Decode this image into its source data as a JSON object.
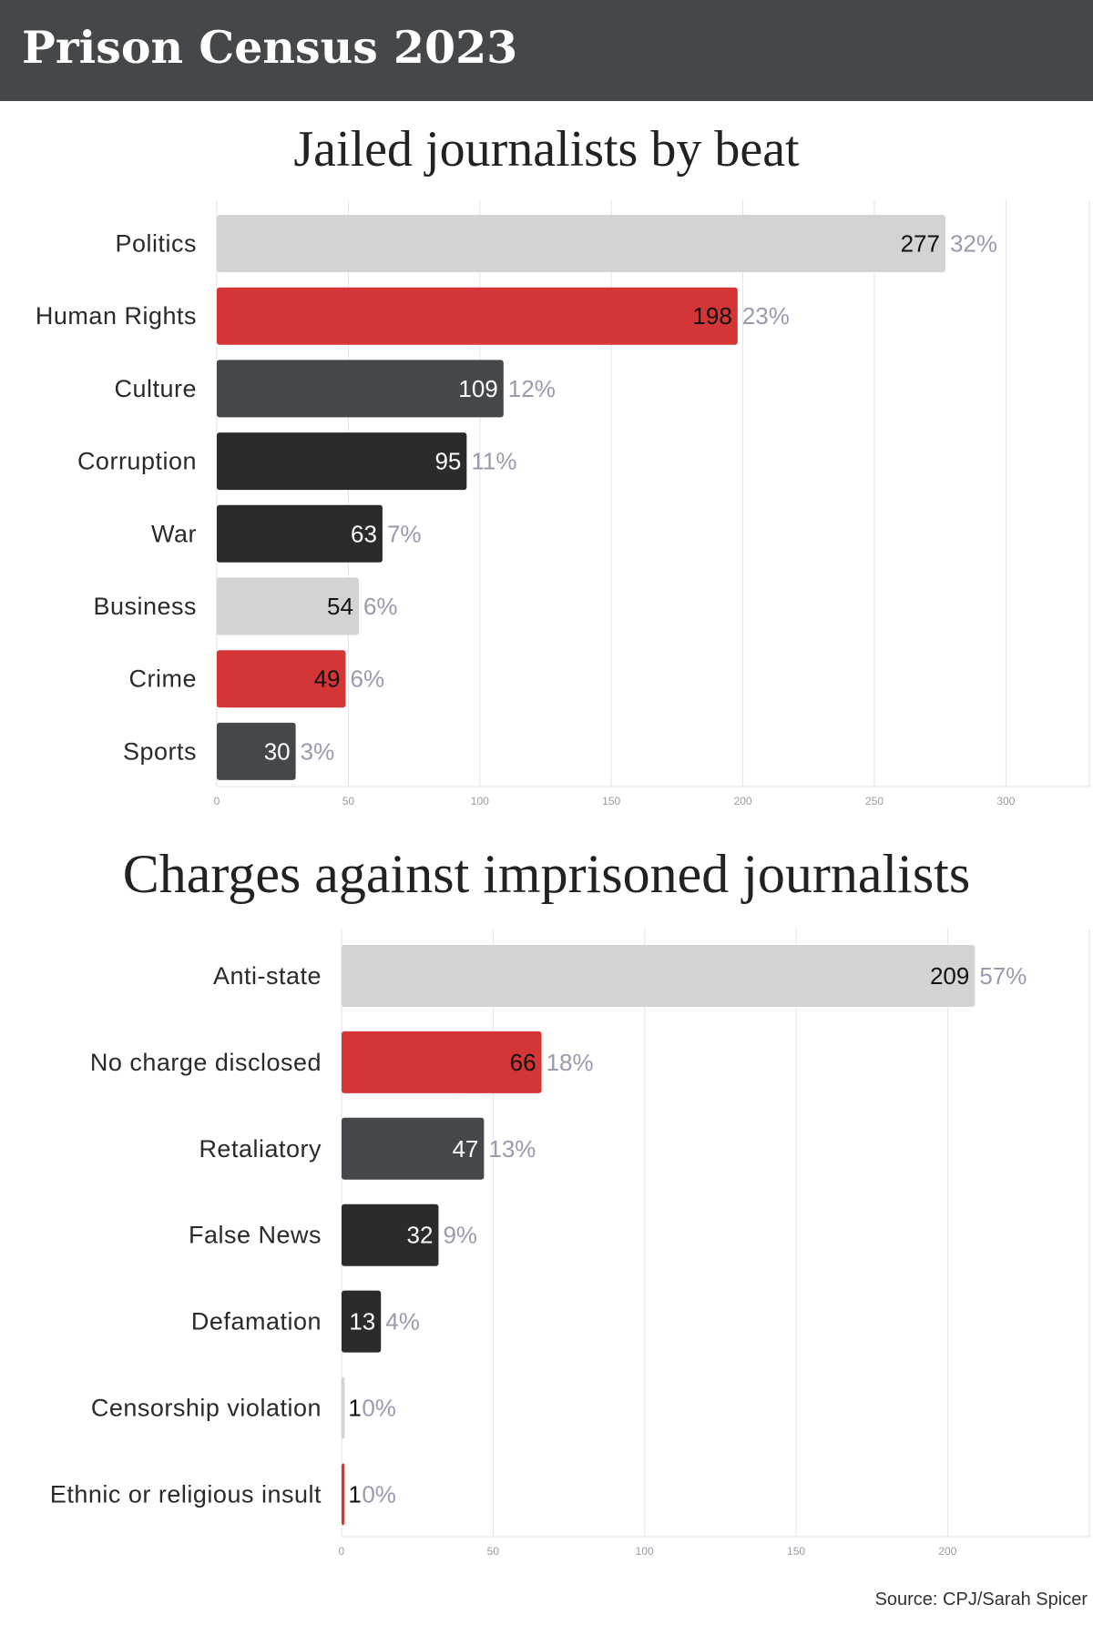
{
  "header": {
    "title": "Prison Census 2023"
  },
  "colors": {
    "light_gray": "#d3d3d3",
    "red": "#d43637",
    "slate": "#45484b",
    "dark": "#2a2b2d",
    "percent_text": "#9a9aae",
    "gridline": "#e2e2ea"
  },
  "chart_data": [
    {
      "type": "bar",
      "orientation": "horizontal",
      "title": "Jailed journalists by beat",
      "categories": [
        "Politics",
        "Human Rights",
        "Culture",
        "Corruption",
        "War",
        "Business",
        "Crime",
        "Sports"
      ],
      "values": [
        277,
        198,
        109,
        95,
        63,
        54,
        49,
        30
      ],
      "percent_labels": [
        "32%",
        "23%",
        "12%",
        "11%",
        "7%",
        "6%",
        "6%",
        "3%"
      ],
      "bar_colors": [
        "#d3d3d3",
        "#d43637",
        "#45484b",
        "#2a2b2d",
        "#2a2b2d",
        "#d3d3d3",
        "#d43637",
        "#45484b"
      ],
      "xlim": [
        0,
        330
      ],
      "xticks": [
        0,
        50,
        100,
        150,
        200,
        250,
        300
      ],
      "grid": true,
      "xlabel": "",
      "ylabel": ""
    },
    {
      "type": "bar",
      "orientation": "horizontal",
      "title": "Charges against imprisoned journalists",
      "categories": [
        "Anti-state",
        "No charge disclosed",
        "Retaliatory",
        "False News",
        "Defamation",
        "Censorship violation",
        "Ethnic or religious insult"
      ],
      "values": [
        209,
        66,
        47,
        32,
        13,
        1,
        1
      ],
      "percent_labels": [
        "57%",
        "18%",
        "13%",
        "9%",
        "4%",
        "0%",
        "0%"
      ],
      "bar_colors": [
        "#d3d3d3",
        "#d43637",
        "#45484b",
        "#2a2b2d",
        "#2a2b2d",
        "#d3d3d3",
        "#d43637"
      ],
      "xlim": [
        0,
        250
      ],
      "xticks": [
        0,
        50,
        100,
        150,
        200
      ],
      "grid": true,
      "xlabel": "",
      "ylabel": ""
    }
  ],
  "footer": {
    "source": "Source: CPJ/Sarah Spicer"
  }
}
